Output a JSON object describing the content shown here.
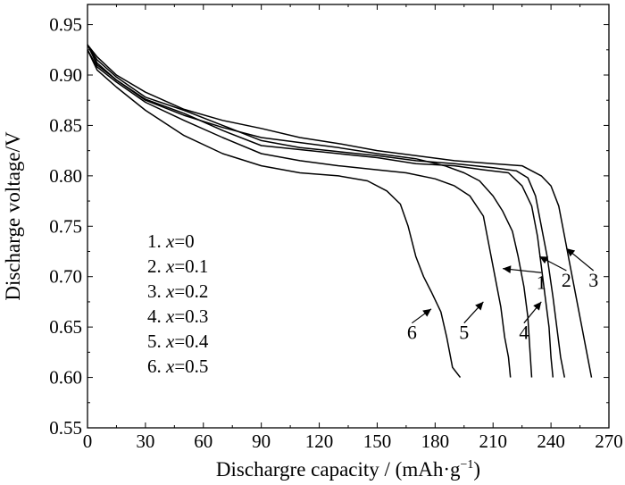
{
  "chart_data": {
    "type": "line",
    "xlabel": "Dischargre capacity / (mAh·g",
    "xlabel_sup": "−1",
    "xlabel_end": ")",
    "ylabel": "Discharge voltage/V",
    "xlim": [
      0,
      270
    ],
    "ylim": [
      0.55,
      0.97
    ],
    "x_ticks": [
      0,
      30,
      60,
      90,
      120,
      150,
      180,
      210,
      240,
      270
    ],
    "x_tick_labels": [
      "0",
      "30",
      "60",
      "90",
      "120",
      "150",
      "180",
      "210",
      "240",
      "270"
    ],
    "y_ticks": [
      0.55,
      0.6,
      0.65,
      0.7,
      0.75,
      0.8,
      0.85,
      0.9,
      0.95
    ],
    "y_tick_labels": [
      "0.55",
      "0.60",
      "0.65",
      "0.70",
      "0.75",
      "0.80",
      "0.85",
      "0.90",
      "0.95"
    ],
    "legend_placement": "lower-left",
    "legend": [
      {
        "num": "1. ",
        "var": "x",
        "val": "=0"
      },
      {
        "num": "2. ",
        "var": "x",
        "val": "=0.1"
      },
      {
        "num": "3. ",
        "var": "x",
        "val": "=0.2"
      },
      {
        "num": "4. ",
        "var": "x",
        "val": "=0.3"
      },
      {
        "num": "5. ",
        "var": "x",
        "val": "=0.4"
      },
      {
        "num": "6. ",
        "var": "x",
        "val": "=0.5"
      }
    ],
    "series": [
      {
        "label": "1",
        "points": [
          [
            0,
            0.93
          ],
          [
            5,
            0.91
          ],
          [
            15,
            0.895
          ],
          [
            30,
            0.875
          ],
          [
            50,
            0.86
          ],
          [
            70,
            0.848
          ],
          [
            90,
            0.838
          ],
          [
            110,
            0.833
          ],
          [
            130,
            0.828
          ],
          [
            150,
            0.822
          ],
          [
            170,
            0.817
          ],
          [
            185,
            0.81
          ],
          [
            195,
            0.803
          ],
          [
            203,
            0.795
          ],
          [
            210,
            0.78
          ],
          [
            215,
            0.765
          ],
          [
            220,
            0.745
          ],
          [
            223,
            0.72
          ],
          [
            226,
            0.69
          ],
          [
            228,
            0.66
          ],
          [
            229,
            0.63
          ],
          [
            230,
            0.6
          ]
        ],
        "label_at": [
          215,
          0.708
        ],
        "label_text_at": [
          235,
          0.688
        ]
      },
      {
        "label": "2",
        "points": [
          [
            0,
            0.93
          ],
          [
            5,
            0.915
          ],
          [
            15,
            0.898
          ],
          [
            30,
            0.878
          ],
          [
            50,
            0.865
          ],
          [
            70,
            0.85
          ],
          [
            90,
            0.835
          ],
          [
            110,
            0.828
          ],
          [
            130,
            0.824
          ],
          [
            150,
            0.82
          ],
          [
            170,
            0.815
          ],
          [
            190,
            0.812
          ],
          [
            210,
            0.808
          ],
          [
            222,
            0.805
          ],
          [
            228,
            0.798
          ],
          [
            232,
            0.78
          ],
          [
            235,
            0.75
          ],
          [
            238,
            0.72
          ],
          [
            241,
            0.68
          ],
          [
            243,
            0.65
          ],
          [
            245,
            0.62
          ],
          [
            247,
            0.6
          ]
        ],
        "label_at": [
          234,
          0.72
        ],
        "label_text_at": [
          248,
          0.69
        ]
      },
      {
        "label": "3",
        "points": [
          [
            0,
            0.93
          ],
          [
            5,
            0.918
          ],
          [
            15,
            0.9
          ],
          [
            30,
            0.883
          ],
          [
            50,
            0.866
          ],
          [
            70,
            0.855
          ],
          [
            90,
            0.847
          ],
          [
            110,
            0.838
          ],
          [
            130,
            0.832
          ],
          [
            150,
            0.825
          ],
          [
            170,
            0.82
          ],
          [
            190,
            0.815
          ],
          [
            210,
            0.812
          ],
          [
            225,
            0.81
          ],
          [
            235,
            0.8
          ],
          [
            240,
            0.79
          ],
          [
            244,
            0.77
          ],
          [
            247,
            0.74
          ],
          [
            250,
            0.71
          ],
          [
            253,
            0.68
          ],
          [
            256,
            0.65
          ],
          [
            258,
            0.63
          ],
          [
            261,
            0.6
          ]
        ],
        "label_at": [
          248,
          0.728
        ],
        "label_text_at": [
          262,
          0.69
        ]
      },
      {
        "label": "4",
        "points": [
          [
            0,
            0.93
          ],
          [
            5,
            0.912
          ],
          [
            15,
            0.895
          ],
          [
            30,
            0.876
          ],
          [
            50,
            0.862
          ],
          [
            70,
            0.845
          ],
          [
            90,
            0.83
          ],
          [
            110,
            0.826
          ],
          [
            130,
            0.822
          ],
          [
            150,
            0.818
          ],
          [
            170,
            0.812
          ],
          [
            190,
            0.81
          ],
          [
            205,
            0.806
          ],
          [
            218,
            0.803
          ],
          [
            225,
            0.79
          ],
          [
            230,
            0.77
          ],
          [
            233,
            0.74
          ],
          [
            235,
            0.71
          ],
          [
            237,
            0.68
          ],
          [
            239,
            0.65
          ],
          [
            240,
            0.62
          ],
          [
            241,
            0.6
          ]
        ],
        "label_at": [
          235,
          0.675
        ],
        "label_text_at": [
          226,
          0.638
        ]
      },
      {
        "label": "5",
        "points": [
          [
            0,
            0.925
          ],
          [
            5,
            0.908
          ],
          [
            15,
            0.893
          ],
          [
            30,
            0.873
          ],
          [
            50,
            0.855
          ],
          [
            70,
            0.838
          ],
          [
            90,
            0.822
          ],
          [
            110,
            0.815
          ],
          [
            130,
            0.81
          ],
          [
            150,
            0.806
          ],
          [
            165,
            0.803
          ],
          [
            180,
            0.797
          ],
          [
            190,
            0.79
          ],
          [
            198,
            0.78
          ],
          [
            205,
            0.76
          ],
          [
            208,
            0.73
          ],
          [
            211,
            0.7
          ],
          [
            214,
            0.67
          ],
          [
            216,
            0.64
          ],
          [
            218,
            0.62
          ],
          [
            219,
            0.6
          ]
        ],
        "label_at": [
          205,
          0.675
        ],
        "label_text_at": [
          195,
          0.638
        ]
      },
      {
        "label": "6",
        "points": [
          [
            0,
            0.925
          ],
          [
            5,
            0.905
          ],
          [
            15,
            0.888
          ],
          [
            30,
            0.865
          ],
          [
            50,
            0.84
          ],
          [
            70,
            0.822
          ],
          [
            90,
            0.81
          ],
          [
            110,
            0.803
          ],
          [
            130,
            0.8
          ],
          [
            145,
            0.795
          ],
          [
            155,
            0.785
          ],
          [
            162,
            0.772
          ],
          [
            166,
            0.75
          ],
          [
            170,
            0.72
          ],
          [
            174,
            0.7
          ],
          [
            178,
            0.685
          ],
          [
            183,
            0.665
          ],
          [
            186,
            0.64
          ],
          [
            189,
            0.61
          ],
          [
            193,
            0.6
          ]
        ],
        "label_at": [
          178,
          0.668
        ],
        "label_text_at": [
          168,
          0.638
        ]
      }
    ]
  }
}
